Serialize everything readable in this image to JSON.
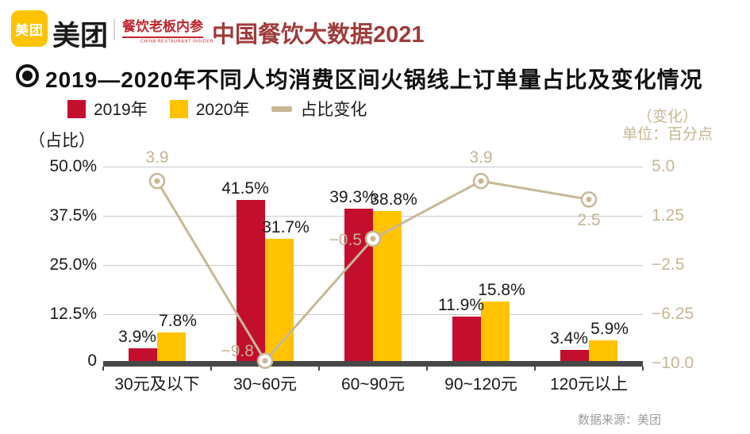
{
  "header": {
    "logo_text": "美团",
    "brand": "美团",
    "publication": "餐饮老板内参",
    "publication_en": "CHINA RESTAURANT INSIDER",
    "report_title": "中国餐饮大数据2021"
  },
  "section": {
    "title": "2019—2020年不同人均消费区间火锅线上订单量占比及变化情况"
  },
  "footer": {
    "source": "数据来源：美团"
  },
  "colors": {
    "bar_2019": "#C40E2E",
    "bar_2020": "#FFC300",
    "change_line": "#C7B896",
    "axis_bar": "#474747",
    "gridline": "#C9C9C9",
    "brand_yellow": "#FFC300",
    "publication_red": "#C2252D",
    "report_title_red": "#A03C3C"
  },
  "chart_data": {
    "type": "bar",
    "title": "2019—2020年不同人均消费区间火锅线上订单量占比及变化情况",
    "categories": [
      "30元及以下",
      "30~60元",
      "60~90元",
      "90~120元",
      "120元以上"
    ],
    "series": [
      {
        "name": "2019年",
        "type": "bar",
        "color": "#C40E2E",
        "values": [
          3.9,
          41.5,
          39.3,
          11.9,
          3.4
        ],
        "labels": [
          "3.9%",
          "41.5%",
          "39.3%",
          "11.9%",
          "3.4%"
        ]
      },
      {
        "name": "2020年",
        "type": "bar",
        "color": "#FFC300",
        "values": [
          7.8,
          31.7,
          38.8,
          15.8,
          5.9
        ],
        "labels": [
          "7.8%",
          "31.7%",
          "38.8%",
          "15.8%",
          "5.9%"
        ]
      },
      {
        "name": "占比变化",
        "type": "line",
        "color": "#C7B896",
        "values": [
          3.9,
          -9.8,
          -0.5,
          3.9,
          2.5
        ],
        "labels": [
          "3.9",
          "−9.8",
          "−0.5",
          "3.9",
          "2.5"
        ],
        "label_placement": [
          "above",
          "left-up",
          "left",
          "above",
          "below"
        ]
      }
    ],
    "left_axis": {
      "title": "（占比）",
      "range": [
        0,
        50
      ],
      "ticks": [
        {
          "label": "50.0%",
          "value": 50
        },
        {
          "label": "37.5%",
          "value": 37.5
        },
        {
          "label": "25.0%",
          "value": 25
        },
        {
          "label": "12.5%",
          "value": 12.5
        },
        {
          "label": "0",
          "value": 0
        }
      ]
    },
    "right_axis": {
      "title": [
        "（变化）",
        "单位：百分点"
      ],
      "range": [
        -10,
        5
      ],
      "ticks": [
        {
          "label": "5.0",
          "value": 5
        },
        {
          "label": "1.25",
          "value": 1.25
        },
        {
          "label": "−2.5",
          "value": -2.5
        },
        {
          "label": "−6.25",
          "value": -6.25
        },
        {
          "label": "−10.0",
          "value": -10
        }
      ]
    },
    "grid": true,
    "legend_position": "top-left"
  }
}
